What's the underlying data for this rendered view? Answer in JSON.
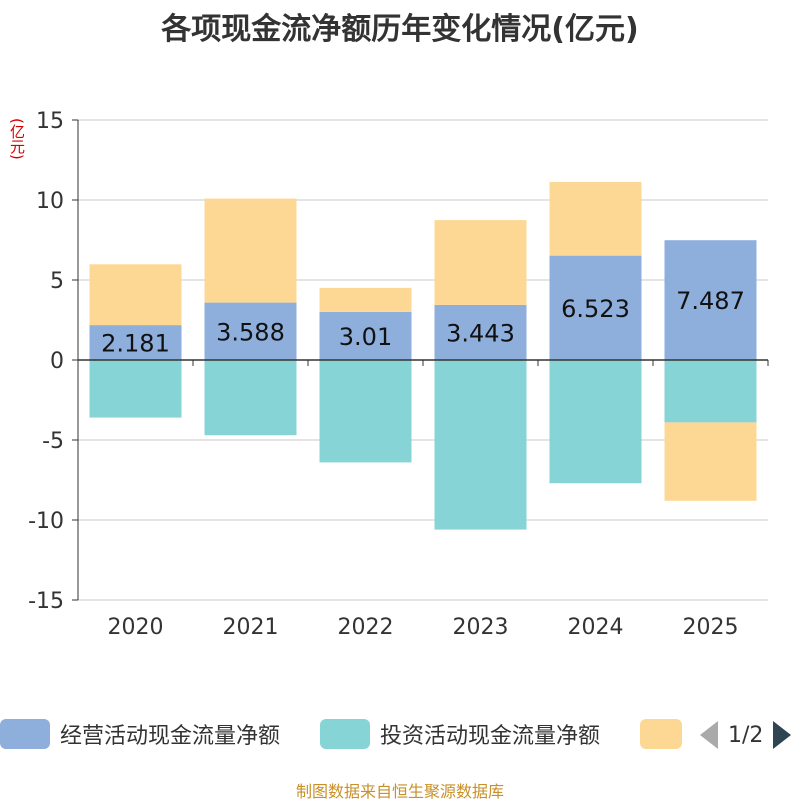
{
  "title": "各项现金流净额历年变化情况(亿元)",
  "unit_label": "(亿元)",
  "source": "制图数据来自恒生聚源数据库",
  "legend": {
    "items": [
      {
        "label": "经营活动现金流量净额",
        "color": "#8eaedc"
      },
      {
        "label": "投资活动现金流量净额",
        "color": "#86d4d6"
      },
      {
        "label": "",
        "color": "#fdd895"
      }
    ],
    "page": "1/2"
  },
  "chart_data": {
    "type": "bar",
    "stacked": true,
    "categories": [
      "2020",
      "2021",
      "2022",
      "2023",
      "2024",
      "2025"
    ],
    "ylim": [
      -15,
      15
    ],
    "yticks": [
      15,
      10,
      5,
      0,
      -5,
      -10,
      -15
    ],
    "series": [
      {
        "name": "经营活动现金流量净额",
        "color": "#8eaedc",
        "values": [
          2.181,
          3.588,
          3.01,
          3.443,
          6.523,
          7.487
        ],
        "labels": [
          "2.181",
          "3.588",
          "3.01",
          "3.443",
          "6.523",
          "7.487"
        ]
      },
      {
        "name": "投资活动现金流量净额",
        "color": "#86d4d6",
        "values": [
          -3.6,
          -4.7,
          -6.4,
          -10.6,
          -7.7,
          -3.9
        ]
      },
      {
        "name": "",
        "color": "#fdd895",
        "values": [
          3.8,
          6.5,
          1.5,
          5.3,
          4.6,
          -4.9
        ]
      }
    ]
  }
}
